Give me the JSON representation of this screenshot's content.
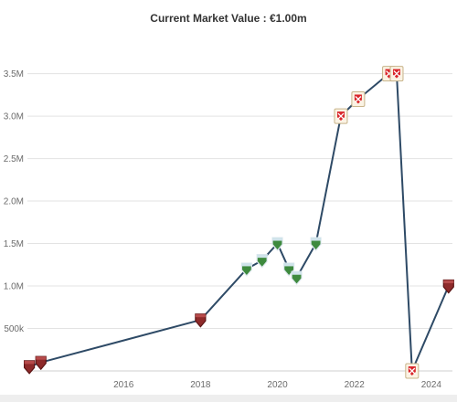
{
  "title": "Current Market Value : €1.00m",
  "chart_data": {
    "type": "line",
    "title": "Current Market Value : €1.00m",
    "xlabel": "",
    "ylabel": "",
    "xlim": [
      2013.5,
      2024.55
    ],
    "ylim": [
      0,
      3700000
    ],
    "grid": true,
    "y_ticks": [
      {
        "value": 500000,
        "label": "500k"
      },
      {
        "value": 1000000,
        "label": "1.0M"
      },
      {
        "value": 1500000,
        "label": "1.5M"
      },
      {
        "value": 2000000,
        "label": "2.0M"
      },
      {
        "value": 2500000,
        "label": "2.5M"
      },
      {
        "value": 3000000,
        "label": "3.0M"
      },
      {
        "value": 3500000,
        "label": "3.5M"
      }
    ],
    "x_ticks": [
      {
        "value": 2016,
        "label": "2016"
      },
      {
        "value": 2018,
        "label": "2018"
      },
      {
        "value": 2020,
        "label": "2020"
      },
      {
        "value": 2022,
        "label": "2022"
      },
      {
        "value": 2024,
        "label": "2024"
      }
    ],
    "series": [
      {
        "color": "#2e4a66",
        "points": [
          {
            "x": 2013.55,
            "y": 50000,
            "club": "dark-red"
          },
          {
            "x": 2013.85,
            "y": 100000,
            "club": "dark-red"
          },
          {
            "x": 2018.0,
            "y": 600000,
            "club": "dark-red"
          },
          {
            "x": 2019.2,
            "y": 1200000,
            "club": "green"
          },
          {
            "x": 2019.6,
            "y": 1300000,
            "club": "green"
          },
          {
            "x": 2020.0,
            "y": 1500000,
            "club": "green"
          },
          {
            "x": 2020.3,
            "y": 1200000,
            "club": "green"
          },
          {
            "x": 2020.5,
            "y": 1100000,
            "club": "green"
          },
          {
            "x": 2021.0,
            "y": 1500000,
            "club": "green"
          },
          {
            "x": 2021.65,
            "y": 3000000,
            "club": "red-cross"
          },
          {
            "x": 2022.1,
            "y": 3200000,
            "club": "red-cross"
          },
          {
            "x": 2022.9,
            "y": 3500000,
            "club": "red-cross"
          },
          {
            "x": 2023.1,
            "y": 3500000,
            "club": "red-cross"
          },
          {
            "x": 2023.5,
            "y": 0,
            "club": "red-cross"
          },
          {
            "x": 2024.45,
            "y": 1000000,
            "club": "dark-red"
          }
        ]
      }
    ]
  },
  "colors": {
    "line": "#2e4a66",
    "grid": "#e3e3e3",
    "badge_dark_red": "#8e2a2a",
    "badge_green": "#3e8a3e",
    "badge_red_cross": "#d9262b"
  }
}
